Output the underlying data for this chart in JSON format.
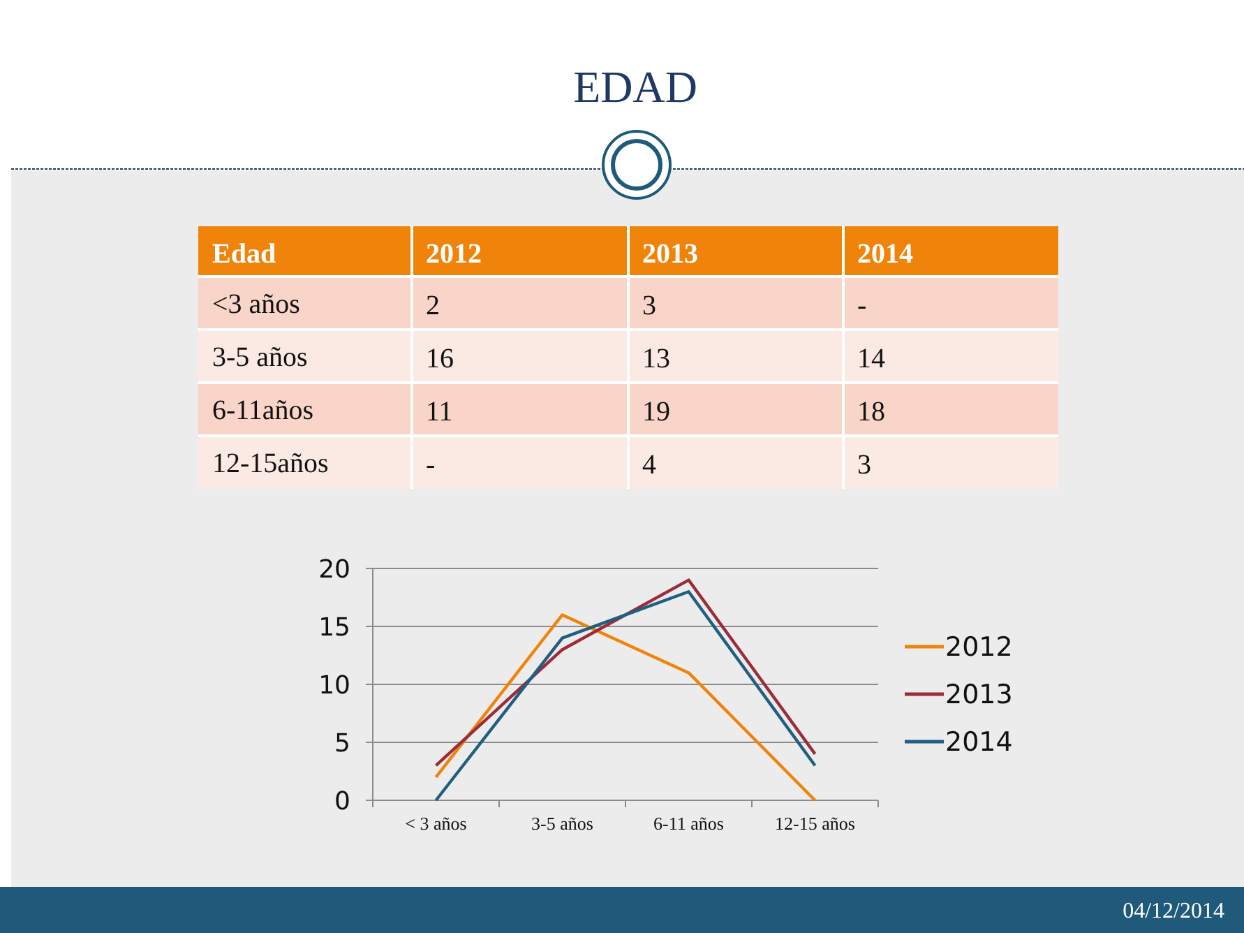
{
  "chart_data": {
    "type": "line",
    "title": "EDAD",
    "categories": [
      "< 3 años",
      "3-5 años",
      "6-11 años",
      "12-15 años"
    ],
    "series": [
      {
        "name": "2012",
        "color": "#f0840a",
        "values": [
          2,
          16,
          11,
          0
        ]
      },
      {
        "name": "2013",
        "color": "#9b2d3a",
        "values": [
          3,
          13,
          19,
          4
        ]
      },
      {
        "name": "2014",
        "color": "#1f5f82",
        "values": [
          0,
          14,
          18,
          3
        ]
      }
    ],
    "ylim": [
      0,
      20
    ],
    "yticks": [
      0,
      5,
      10,
      15,
      20
    ],
    "grid": "y",
    "legend": "right",
    "annotations": [
      "Edad",
      "<3 años",
      "3-5 años",
      "6-11años",
      "12-15años",
      "2",
      "3",
      "-",
      "16",
      "13",
      "14",
      "11",
      "19",
      "18",
      "-",
      "4",
      "3",
      "04/12/2014"
    ]
  }
}
